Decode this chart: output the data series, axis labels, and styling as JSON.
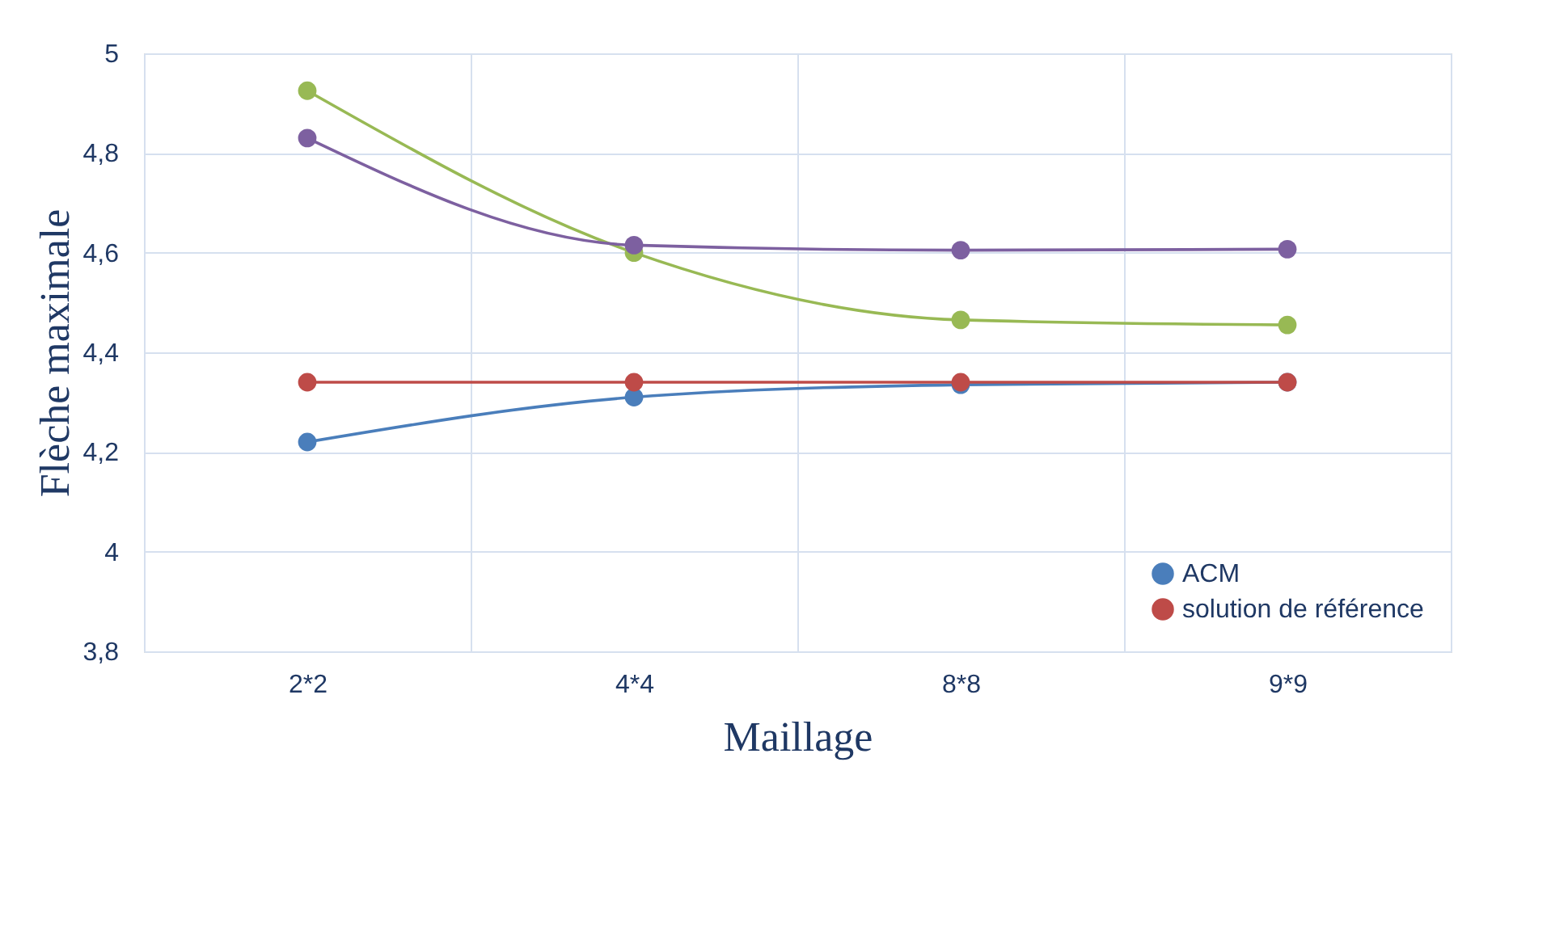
{
  "chart_data": {
    "type": "line",
    "xlabel": "Maillage",
    "ylabel": "Flèche maximale",
    "categories": [
      "2*2",
      "4*4",
      "8*8",
      "9*9"
    ],
    "series": [
      {
        "name": "ACM",
        "color": "#4a7ebb",
        "values": [
          4.22,
          4.31,
          4.335,
          4.34
        ]
      },
      {
        "name": "solution de référence",
        "color": "#be4b48",
        "values": [
          4.34,
          4.34,
          4.34,
          4.34
        ]
      },
      {
        "color": "#98b954",
        "values": [
          4.925,
          4.6,
          4.465,
          4.455
        ]
      },
      {
        "color": "#7d60a0",
        "values": [
          4.83,
          4.615,
          4.605,
          4.607
        ]
      }
    ],
    "ylim": [
      3.8,
      5
    ],
    "yticks": [
      {
        "value": 3.8,
        "label": "3,8"
      },
      4,
      {
        "value": 4.2,
        "label": "4,2"
      },
      {
        "value": 4.4,
        "label": "4,4"
      },
      {
        "value": 4.6,
        "label": "4,6"
      },
      {
        "value": 4.8,
        "label": "4,8"
      },
      5
    ],
    "grid": true,
    "legend": "bottom right",
    "marker": "circle",
    "line_style": "solid"
  }
}
